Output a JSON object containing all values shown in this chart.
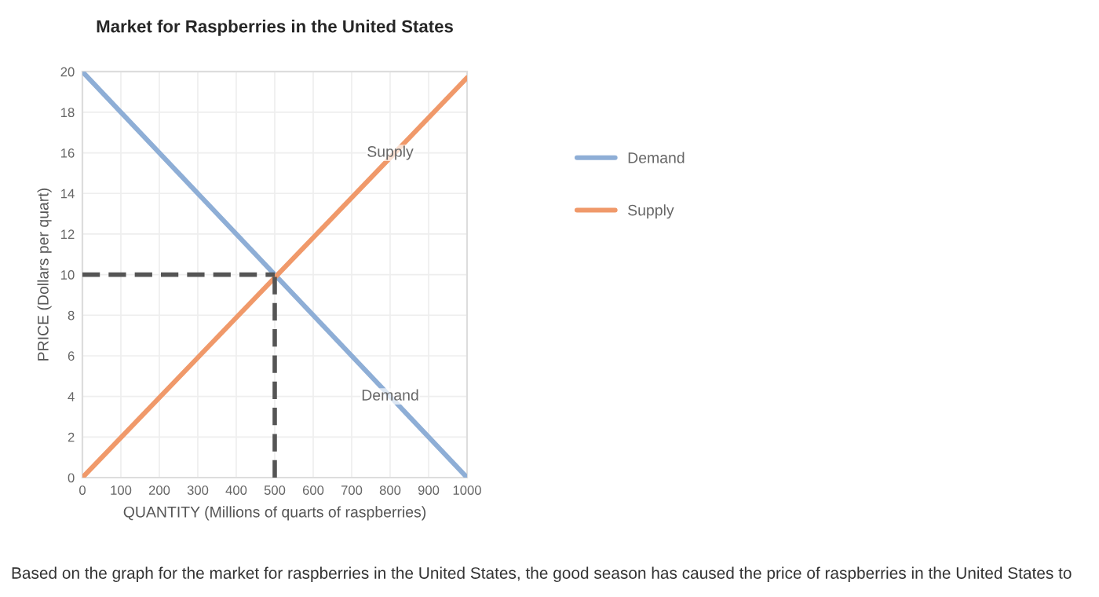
{
  "chart_data": {
    "type": "line",
    "title": "Market for Raspberries in the United States",
    "xlabel": "QUANTITY (Millions of quarts of raspberries)",
    "ylabel": "PRICE (Dollars per quart)",
    "series": [
      {
        "name": "Demand",
        "color": "#8eaed6",
        "x": [
          0,
          1000
        ],
        "values": [
          20,
          0
        ]
      },
      {
        "name": "Supply",
        "color": "#f0996a",
        "x": [
          0,
          1000
        ],
        "values": [
          0,
          19.7
        ]
      },
      {
        "color": "#555555",
        "x": [
          0,
          500
        ],
        "values": [
          10,
          10
        ],
        "line_style": "dashed"
      },
      {
        "color": "#555555",
        "x": [
          500,
          500
        ],
        "values": [
          0,
          10
        ],
        "line_style": "dashed"
      }
    ],
    "xlim": [
      0,
      1000
    ],
    "xticks": [
      0,
      100,
      200,
      300,
      400,
      500,
      600,
      700,
      800,
      900,
      1000
    ],
    "ylim": [
      0,
      20
    ],
    "yticks": [
      0,
      2,
      4,
      6,
      8,
      10,
      12,
      14,
      16,
      18,
      20
    ],
    "grid": true,
    "legend": "right",
    "annotations": [
      {
        "text": "Supply",
        "x": 800,
        "y": 16
      },
      {
        "text": "Demand",
        "x": 800,
        "y": 4
      },
      "Based on the graph for the market for raspberries in the United States, the good season has caused the price of raspberries in the United States to"
    ]
  }
}
